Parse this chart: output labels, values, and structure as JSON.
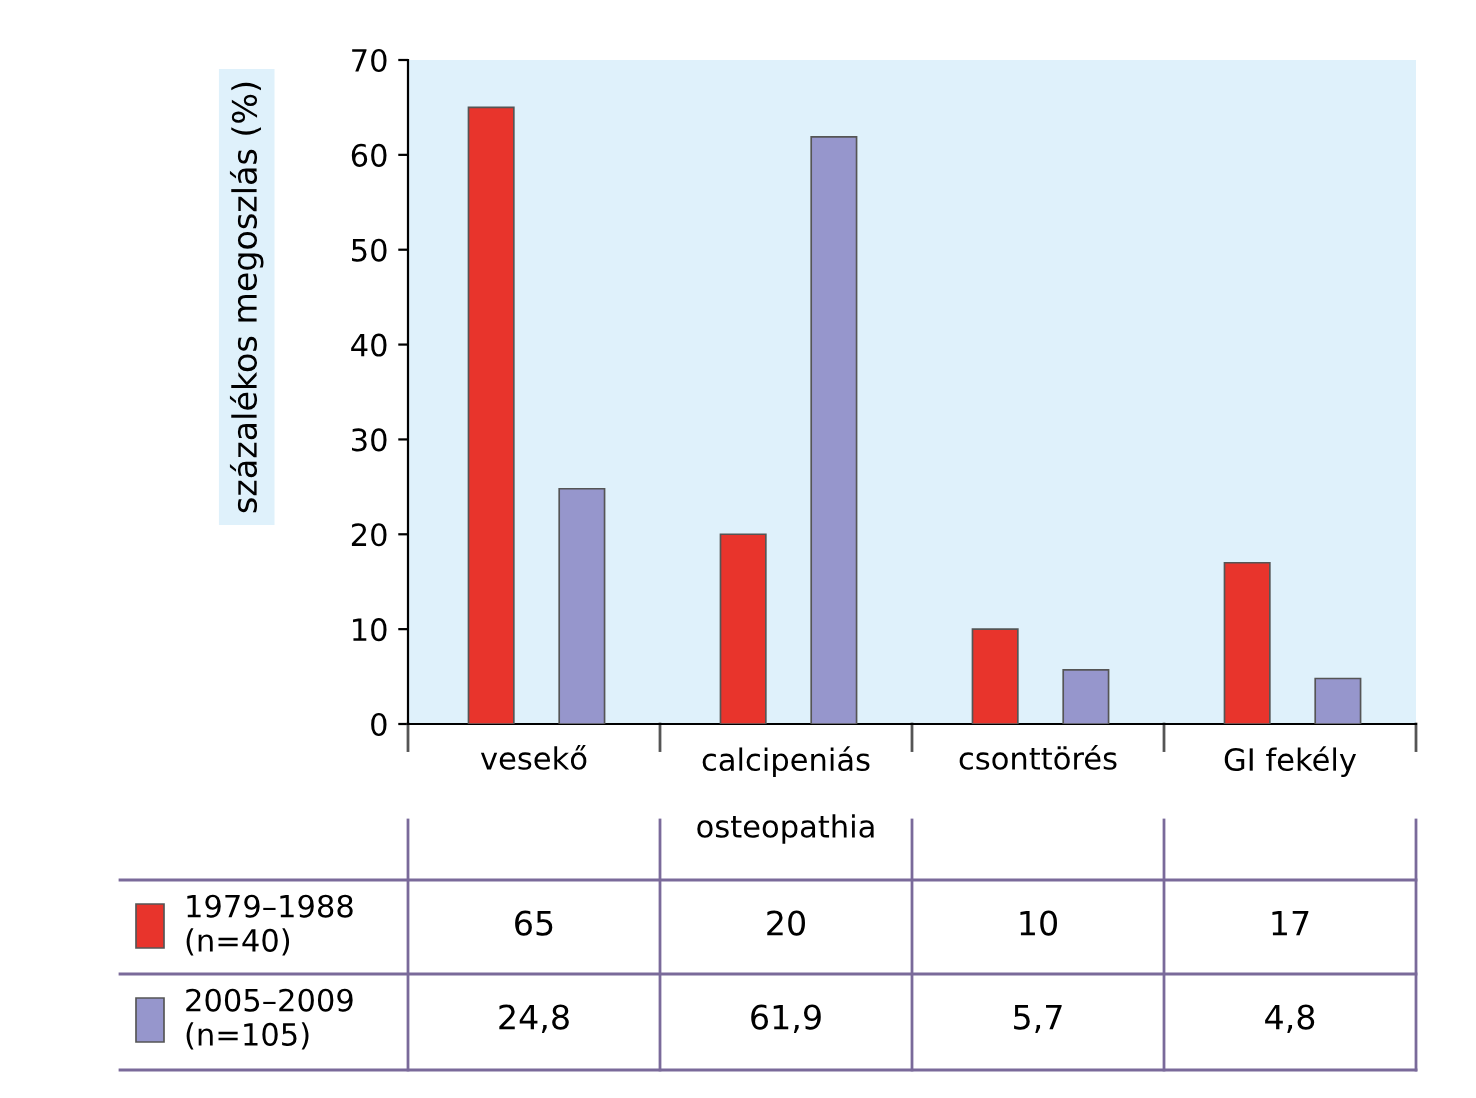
{
  "chart_data": {
    "type": "bar",
    "ylabel": "százalékos megoszlás (%)",
    "categories": [
      "vesekő",
      "calcipeniás\nosteopathia",
      "csonttörés",
      "GI fekély"
    ],
    "series": [
      {
        "name": "1979–1988\n(n=40)",
        "color": "#e8342c",
        "values": [
          65,
          20,
          10,
          17
        ],
        "value_labels": [
          "65",
          "20",
          "10",
          "17"
        ]
      },
      {
        "name": "2005–2009\n(n=105)",
        "color": "#9696cc",
        "values": [
          24.8,
          61.9,
          5.7,
          4.8
        ],
        "value_labels": [
          "24,8",
          "61,9",
          "5,7",
          "4,8"
        ]
      }
    ],
    "ylim": [
      0,
      70
    ],
    "yticks": [
      0,
      10,
      20,
      30,
      40,
      50,
      60,
      70
    ],
    "grid": false,
    "legend": "bottom left"
  }
}
